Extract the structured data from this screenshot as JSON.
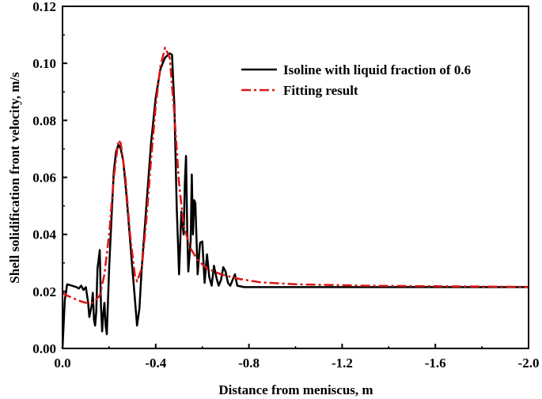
{
  "chart_data": {
    "type": "line",
    "xlabel": "Distance from meniscus, m",
    "ylabel": "Shell solidification front velocity, m/s",
    "xlim": [
      0.0,
      -2.0
    ],
    "ylim": [
      0.0,
      0.12
    ],
    "xticks": [
      0.0,
      -0.4,
      -0.8,
      -1.2,
      -1.6,
      -2.0
    ],
    "xtick_labels": [
      "0.0",
      "-0.4",
      "-0.8",
      "-1.2",
      "-1.6",
      "-2.0"
    ],
    "yticks": [
      0.0,
      0.02,
      0.04,
      0.06,
      0.08,
      0.1,
      0.12
    ],
    "ytick_labels": [
      "0.00",
      "0.02",
      "0.04",
      "0.06",
      "0.08",
      "0.10",
      "0.12"
    ],
    "grid": false,
    "legend_position": "top-right",
    "series": [
      {
        "name": "Isoline with liquid fraction of 0.6",
        "color": "#000000",
        "style": "solid",
        "points": [
          [
            0.0,
            0.0
          ],
          [
            -0.01,
            0.017
          ],
          [
            -0.02,
            0.0225
          ],
          [
            -0.04,
            0.022
          ],
          [
            -0.06,
            0.0215
          ],
          [
            -0.07,
            0.021
          ],
          [
            -0.08,
            0.022
          ],
          [
            -0.09,
            0.0205
          ],
          [
            -0.1,
            0.0215
          ],
          [
            -0.11,
            0.016
          ],
          [
            -0.115,
            0.011
          ],
          [
            -0.125,
            0.015
          ],
          [
            -0.13,
            0.0195
          ],
          [
            -0.135,
            0.01
          ],
          [
            -0.14,
            0.008
          ],
          [
            -0.145,
            0.013
          ],
          [
            -0.15,
            0.028
          ],
          [
            -0.16,
            0.0345
          ],
          [
            -0.165,
            0.015
          ],
          [
            -0.17,
            0.006
          ],
          [
            -0.175,
            0.012
          ],
          [
            -0.18,
            0.016
          ],
          [
            -0.185,
            0.008
          ],
          [
            -0.19,
            0.005
          ],
          [
            -0.2,
            0.028
          ],
          [
            -0.21,
            0.045
          ],
          [
            -0.22,
            0.062
          ],
          [
            -0.23,
            0.069
          ],
          [
            -0.24,
            0.0715
          ],
          [
            -0.25,
            0.07
          ],
          [
            -0.26,
            0.066
          ],
          [
            -0.27,
            0.058
          ],
          [
            -0.28,
            0.048
          ],
          [
            -0.29,
            0.038
          ],
          [
            -0.3,
            0.028
          ],
          [
            -0.31,
            0.018
          ],
          [
            -0.32,
            0.008
          ],
          [
            -0.33,
            0.014
          ],
          [
            -0.34,
            0.028
          ],
          [
            -0.36,
            0.05
          ],
          [
            -0.38,
            0.072
          ],
          [
            -0.4,
            0.088
          ],
          [
            -0.42,
            0.098
          ],
          [
            -0.44,
            0.102
          ],
          [
            -0.46,
            0.1035
          ],
          [
            -0.47,
            0.103
          ],
          [
            -0.48,
            0.085
          ],
          [
            -0.49,
            0.05
          ],
          [
            -0.5,
            0.026
          ],
          [
            -0.51,
            0.048
          ],
          [
            -0.52,
            0.04
          ],
          [
            -0.525,
            0.058
          ],
          [
            -0.53,
            0.0675
          ],
          [
            -0.535,
            0.042
          ],
          [
            -0.54,
            0.027
          ],
          [
            -0.55,
            0.038
          ],
          [
            -0.555,
            0.061
          ],
          [
            -0.56,
            0.04
          ],
          [
            -0.565,
            0.052
          ],
          [
            -0.57,
            0.051
          ],
          [
            -0.58,
            0.026
          ],
          [
            -0.59,
            0.037
          ],
          [
            -0.6,
            0.0375
          ],
          [
            -0.61,
            0.023
          ],
          [
            -0.62,
            0.033
          ],
          [
            -0.63,
            0.025
          ],
          [
            -0.64,
            0.022
          ],
          [
            -0.65,
            0.029
          ],
          [
            -0.66,
            0.025
          ],
          [
            -0.67,
            0.022
          ],
          [
            -0.68,
            0.024
          ],
          [
            -0.69,
            0.0285
          ],
          [
            -0.7,
            0.027
          ],
          [
            -0.71,
            0.023
          ],
          [
            -0.72,
            0.022
          ],
          [
            -0.74,
            0.026
          ],
          [
            -0.75,
            0.022
          ],
          [
            -0.78,
            0.0215
          ],
          [
            -0.9,
            0.0215
          ],
          [
            -1.2,
            0.0215
          ],
          [
            -1.6,
            0.0215
          ],
          [
            -2.0,
            0.0215
          ]
        ]
      },
      {
        "name": "Fitting result",
        "color": "#dd1414",
        "style": "dash-dot",
        "points": [
          [
            0.0,
            0.0195
          ],
          [
            -0.02,
            0.0185
          ],
          [
            -0.05,
            0.0175
          ],
          [
            -0.08,
            0.0165
          ],
          [
            -0.1,
            0.016
          ],
          [
            -0.13,
            0.016
          ],
          [
            -0.16,
            0.0185
          ],
          [
            -0.18,
            0.026
          ],
          [
            -0.2,
            0.04
          ],
          [
            -0.22,
            0.06
          ],
          [
            -0.24,
            0.073
          ],
          [
            -0.25,
            0.072
          ],
          [
            -0.27,
            0.06
          ],
          [
            -0.29,
            0.04
          ],
          [
            -0.31,
            0.026
          ],
          [
            -0.32,
            0.0235
          ],
          [
            -0.34,
            0.028
          ],
          [
            -0.36,
            0.045
          ],
          [
            -0.38,
            0.066
          ],
          [
            -0.4,
            0.085
          ],
          [
            -0.42,
            0.099
          ],
          [
            -0.44,
            0.1055
          ],
          [
            -0.46,
            0.102
          ],
          [
            -0.48,
            0.082
          ],
          [
            -0.5,
            0.058
          ],
          [
            -0.52,
            0.043
          ],
          [
            -0.55,
            0.035
          ],
          [
            -0.58,
            0.031
          ],
          [
            -0.62,
            0.028
          ],
          [
            -0.68,
            0.026
          ],
          [
            -0.75,
            0.0245
          ],
          [
            -0.85,
            0.0232
          ],
          [
            -1.0,
            0.0225
          ],
          [
            -1.3,
            0.022
          ],
          [
            -1.6,
            0.0218
          ],
          [
            -2.0,
            0.0216
          ]
        ]
      }
    ]
  }
}
